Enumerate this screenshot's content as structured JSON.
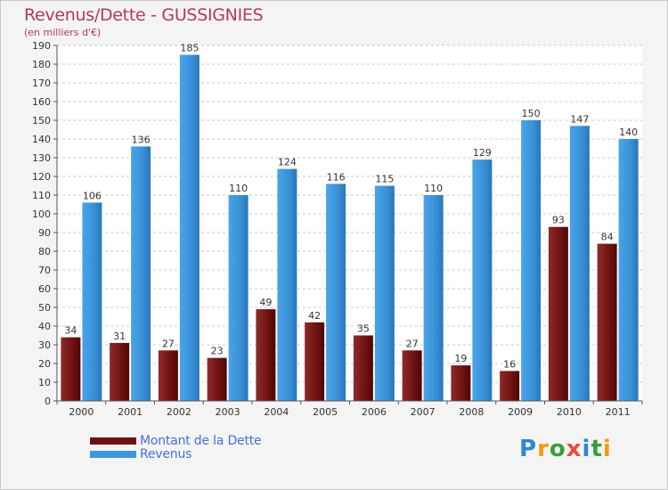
{
  "title": "Revenus/Dette - GUSSIGNIES",
  "subtitle": "(en milliers d'€)",
  "colors": {
    "debt": "#7a1a1a",
    "revenue": "#3f97dc",
    "title": "#b4385e",
    "legend_text": "#4a6fd4"
  },
  "legend": {
    "debt_label": "Montant de la Dette",
    "revenue_label": "Revenus"
  },
  "logo": {
    "text": "Proxiti",
    "p": "P",
    "r": "r",
    "o": "o",
    "x": "x",
    "i1": "i",
    "t": "t",
    "i2": "i"
  },
  "chart_data": {
    "type": "bar",
    "title": "Revenus/Dette - GUSSIGNIES",
    "ylabel": "(en milliers d'€)",
    "xlabel": "",
    "ylim": [
      0,
      190
    ],
    "yticks": [
      0,
      10,
      20,
      30,
      40,
      50,
      60,
      70,
      80,
      90,
      100,
      110,
      120,
      130,
      140,
      150,
      160,
      170,
      180,
      190
    ],
    "categories": [
      "2000",
      "2001",
      "2002",
      "2003",
      "2004",
      "2005",
      "2006",
      "2007",
      "2008",
      "2009",
      "2010",
      "2011"
    ],
    "series": [
      {
        "name": "Montant de la Dette",
        "values": [
          34,
          31,
          27,
          23,
          49,
          42,
          35,
          27,
          19,
          16,
          93,
          84
        ]
      },
      {
        "name": "Revenus",
        "values": [
          106,
          136,
          185,
          110,
          124,
          116,
          115,
          110,
          129,
          150,
          147,
          140
        ]
      }
    ]
  }
}
